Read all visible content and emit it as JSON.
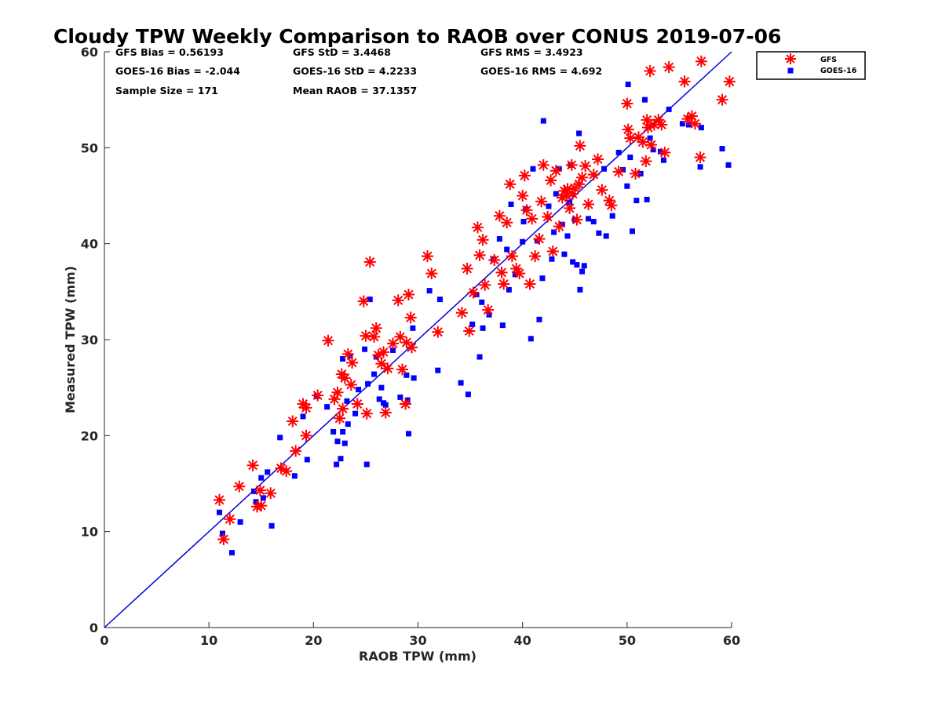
{
  "chart_data": {
    "type": "scatter",
    "title": "Cloudy TPW Weekly Comparison to RAOB over CONUS 2019-07-06",
    "xlabel": "RAOB TPW (mm)",
    "ylabel": "Measured TPW (mm)",
    "xlim": [
      0,
      60
    ],
    "ylim": [
      0,
      60
    ],
    "x_ticks": [
      "0",
      "10",
      "20",
      "30",
      "40",
      "50",
      "60"
    ],
    "y_ticks": [
      "0",
      "10",
      "20",
      "30",
      "40",
      "50",
      "60"
    ],
    "grid": false,
    "legend_position": "outside-top-right",
    "reference_line": {
      "description": "1:1 line",
      "color": "#0000dd",
      "from": [
        0,
        0
      ],
      "to": [
        60,
        60
      ]
    },
    "stats": {
      "gfs_bias": "GFS Bias = 0.56193",
      "gfs_std": "GFS StD = 3.4468",
      "gfs_rms": "GFS RMS = 3.4923",
      "goes_bias": "GOES-16 Bias = -2.044",
      "goes_std": "GOES-16 StD = 4.2233",
      "goes_rms": "GOES-16 RMS = 4.692",
      "sample_size": "Sample Size = 171",
      "mean_raob": "Mean RAOB = 37.1357"
    },
    "series": [
      {
        "name": "GFS",
        "marker": "asterisk",
        "color": "#ff0000",
        "points": [
          [
            11,
            13.3
          ],
          [
            11.4,
            9.2
          ],
          [
            12,
            11.3
          ],
          [
            12.9,
            14.7
          ],
          [
            14.2,
            16.9
          ],
          [
            14.6,
            12.6
          ],
          [
            14.9,
            14.3
          ],
          [
            15,
            12.7
          ],
          [
            15.9,
            14
          ],
          [
            16.9,
            16.6
          ],
          [
            17.4,
            16.3
          ],
          [
            18,
            21.5
          ],
          [
            18.3,
            18.4
          ],
          [
            19,
            23.3
          ],
          [
            19.3,
            22.9
          ],
          [
            19.3,
            20
          ],
          [
            20.4,
            24.2
          ],
          [
            21.4,
            29.9
          ],
          [
            22,
            23.8
          ],
          [
            22.3,
            24.5
          ],
          [
            22.5,
            21.8
          ],
          [
            22.7,
            26.4
          ],
          [
            22.8,
            22.8
          ],
          [
            23,
            26
          ],
          [
            23.3,
            28.5
          ],
          [
            23.6,
            25.3
          ],
          [
            23.7,
            27.6
          ],
          [
            24.2,
            23.3
          ],
          [
            24.8,
            34
          ],
          [
            25,
            30.4
          ],
          [
            25.1,
            22.3
          ],
          [
            25.4,
            38.1
          ],
          [
            25.8,
            30.3
          ],
          [
            26,
            31.2
          ],
          [
            26.2,
            28.4
          ],
          [
            26.5,
            27.5
          ],
          [
            26.7,
            28.7
          ],
          [
            26.9,
            22.4
          ],
          [
            27.1,
            27
          ],
          [
            27.6,
            29.6
          ],
          [
            28.1,
            34.1
          ],
          [
            28.3,
            30.3
          ],
          [
            28.5,
            26.9
          ],
          [
            28.8,
            23.3
          ],
          [
            28.9,
            29.7
          ],
          [
            29.1,
            34.7
          ],
          [
            29.3,
            32.3
          ],
          [
            29.4,
            29.2
          ],
          [
            30.9,
            38.7
          ],
          [
            31.3,
            36.9
          ],
          [
            31.9,
            30.8
          ],
          [
            34.2,
            32.8
          ],
          [
            34.7,
            37.4
          ],
          [
            34.9,
            30.9
          ],
          [
            35.3,
            34.9
          ],
          [
            35.7,
            41.7
          ],
          [
            35.9,
            38.8
          ],
          [
            36.2,
            40.4
          ],
          [
            36.4,
            35.7
          ],
          [
            36.7,
            33.1
          ],
          [
            37.3,
            38.3
          ],
          [
            37.8,
            42.9
          ],
          [
            38,
            37
          ],
          [
            38.2,
            35.8
          ],
          [
            38.5,
            42.2
          ],
          [
            38.8,
            46.2
          ],
          [
            39,
            38.7
          ],
          [
            39.4,
            37.4
          ],
          [
            39.7,
            36.9
          ],
          [
            40,
            45
          ],
          [
            40.2,
            47.1
          ],
          [
            40.4,
            43.5
          ],
          [
            40.7,
            35.8
          ],
          [
            40.9,
            42.6
          ],
          [
            41.2,
            38.7
          ],
          [
            41.6,
            40.5
          ],
          [
            41.8,
            44.4
          ],
          [
            42,
            48.2
          ],
          [
            42.4,
            42.8
          ],
          [
            42.7,
            46.6
          ],
          [
            42.9,
            39.2
          ],
          [
            43.2,
            47.6
          ],
          [
            43.5,
            41.8
          ],
          [
            43.8,
            44.8
          ],
          [
            44,
            45.5
          ],
          [
            44.2,
            45
          ],
          [
            44.3,
            45.7
          ],
          [
            44.5,
            43.7
          ],
          [
            44.7,
            48.2
          ],
          [
            44.8,
            45.2
          ],
          [
            45,
            45.8
          ],
          [
            45.2,
            42.5
          ],
          [
            45.4,
            46.2
          ],
          [
            45.5,
            50.2
          ],
          [
            45.7,
            46.9
          ],
          [
            46,
            48.1
          ],
          [
            46.3,
            44.1
          ],
          [
            46.8,
            47.2
          ],
          [
            47.2,
            48.8
          ],
          [
            47.6,
            45.6
          ],
          [
            48.3,
            44.5
          ],
          [
            48.5,
            44
          ],
          [
            49.2,
            47.5
          ],
          [
            50,
            54.6
          ],
          [
            50.1,
            51.9
          ],
          [
            50.3,
            51
          ],
          [
            50.8,
            47.3
          ],
          [
            51.1,
            51.1
          ],
          [
            51.5,
            50.6
          ],
          [
            51.8,
            48.6
          ],
          [
            51.9,
            52.9
          ],
          [
            52,
            52.1
          ],
          [
            52.2,
            58
          ],
          [
            52.3,
            50.3
          ],
          [
            52.6,
            52.4
          ],
          [
            53,
            52.9
          ],
          [
            53.3,
            52.4
          ],
          [
            53.6,
            49.5
          ],
          [
            54,
            58.4
          ],
          [
            55.5,
            56.9
          ],
          [
            55.8,
            53
          ],
          [
            56.2,
            53.3
          ],
          [
            56.5,
            52.5
          ],
          [
            57,
            49
          ],
          [
            57.1,
            59
          ],
          [
            59.1,
            55
          ],
          [
            59.8,
            56.9
          ]
        ]
      },
      {
        "name": "GOES-16",
        "marker": "square",
        "color": "#0000ff",
        "points": [
          [
            11,
            12
          ],
          [
            11.3,
            9.8
          ],
          [
            12.2,
            7.8
          ],
          [
            13,
            11
          ],
          [
            14.3,
            14.2
          ],
          [
            14.5,
            13.1
          ],
          [
            15,
            15.6
          ],
          [
            15.2,
            13.5
          ],
          [
            15.6,
            16.2
          ],
          [
            16,
            10.6
          ],
          [
            16.8,
            19.8
          ],
          [
            18.2,
            15.8
          ],
          [
            19,
            22
          ],
          [
            19.4,
            17.5
          ],
          [
            20.3,
            24.1
          ],
          [
            21.3,
            23
          ],
          [
            21.9,
            20.4
          ],
          [
            22.2,
            17
          ],
          [
            22.3,
            19.4
          ],
          [
            22.6,
            17.6
          ],
          [
            22.8,
            20.4
          ],
          [
            22.8,
            28
          ],
          [
            23,
            19.2
          ],
          [
            23.2,
            23.6
          ],
          [
            23.3,
            21.2
          ],
          [
            23.5,
            28.3
          ],
          [
            24,
            22.3
          ],
          [
            24.3,
            24.8
          ],
          [
            24.9,
            29
          ],
          [
            25.1,
            17
          ],
          [
            25.2,
            25.4
          ],
          [
            25.4,
            34.2
          ],
          [
            25.8,
            26.4
          ],
          [
            26,
            28.2
          ],
          [
            26.3,
            23.8
          ],
          [
            26.5,
            25
          ],
          [
            26.7,
            23.4
          ],
          [
            26.9,
            23.2
          ],
          [
            27.6,
            28.9
          ],
          [
            28.3,
            24
          ],
          [
            28.9,
            26.3
          ],
          [
            29,
            23.7
          ],
          [
            29.1,
            20.2
          ],
          [
            29.5,
            31.2
          ],
          [
            29.6,
            26
          ],
          [
            31.1,
            35.1
          ],
          [
            31.9,
            26.8
          ],
          [
            32.1,
            34.2
          ],
          [
            34.1,
            25.5
          ],
          [
            34.8,
            24.3
          ],
          [
            35.2,
            31.6
          ],
          [
            35.6,
            34.7
          ],
          [
            35.9,
            28.2
          ],
          [
            36.1,
            33.9
          ],
          [
            36.2,
            31.2
          ],
          [
            36.8,
            32.6
          ],
          [
            37.2,
            38.4
          ],
          [
            37.8,
            40.5
          ],
          [
            38.1,
            31.5
          ],
          [
            38.5,
            39.4
          ],
          [
            38.7,
            35.2
          ],
          [
            38.9,
            44.1
          ],
          [
            39.3,
            36.8
          ],
          [
            40,
            40.2
          ],
          [
            40.1,
            42.3
          ],
          [
            40.3,
            43.6
          ],
          [
            40.8,
            30.1
          ],
          [
            41,
            47.8
          ],
          [
            41.4,
            40.3
          ],
          [
            41.6,
            32.1
          ],
          [
            41.9,
            36.4
          ],
          [
            42,
            52.8
          ],
          [
            42.5,
            43.9
          ],
          [
            42.8,
            38.4
          ],
          [
            43,
            41.2
          ],
          [
            43.2,
            45.2
          ],
          [
            43.5,
            47.8
          ],
          [
            43.8,
            42
          ],
          [
            44,
            38.9
          ],
          [
            44.3,
            40.8
          ],
          [
            44.5,
            44.3
          ],
          [
            44.6,
            48.2
          ],
          [
            44.8,
            38.1
          ],
          [
            45,
            42.5
          ],
          [
            45.2,
            37.8
          ],
          [
            45.4,
            51.5
          ],
          [
            45.5,
            35.2
          ],
          [
            45.7,
            37.1
          ],
          [
            45.9,
            37.7
          ],
          [
            46.3,
            42.6
          ],
          [
            46.8,
            42.3
          ],
          [
            47.3,
            41.1
          ],
          [
            47.8,
            47.8
          ],
          [
            48,
            40.8
          ],
          [
            48.6,
            42.9
          ],
          [
            49.2,
            49.5
          ],
          [
            49.6,
            47.7
          ],
          [
            50,
            46
          ],
          [
            50.1,
            56.6
          ],
          [
            50.3,
            49
          ],
          [
            50.5,
            41.3
          ],
          [
            50.9,
            44.5
          ],
          [
            51.3,
            47.3
          ],
          [
            51.7,
            55
          ],
          [
            51.9,
            44.6
          ],
          [
            52.2,
            51
          ],
          [
            52.5,
            49.8
          ],
          [
            53.2,
            49.6
          ],
          [
            53.5,
            48.7
          ],
          [
            54,
            54
          ],
          [
            55.3,
            52.5
          ],
          [
            55.9,
            52.4
          ],
          [
            57.1,
            52.1
          ],
          [
            57,
            48
          ],
          [
            59.1,
            49.9
          ],
          [
            59.7,
            48.2
          ]
        ]
      }
    ]
  }
}
